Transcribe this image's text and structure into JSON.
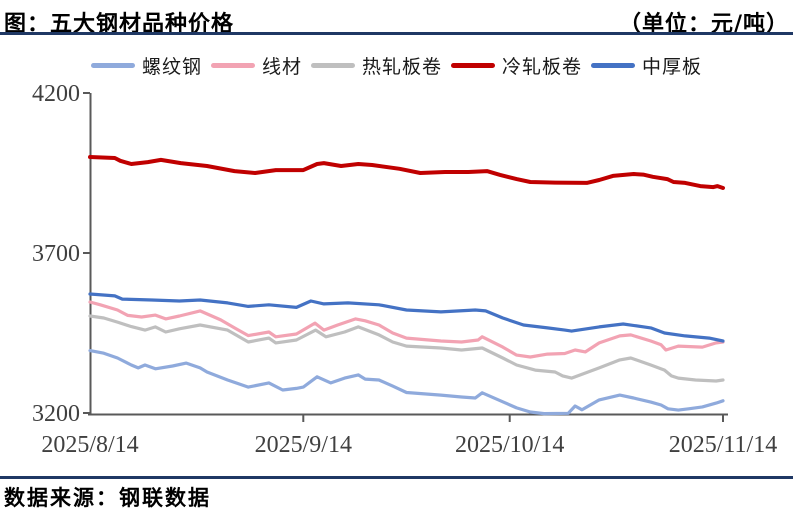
{
  "header": {
    "title": "图：五大钢材品种价格",
    "unit": "（单位：元/吨）"
  },
  "footer": {
    "source": "数据来源：钢联数据"
  },
  "colors": {
    "rule": "#1f3864",
    "axis": "#595959",
    "tick_text": "#404040",
    "series_rebar": "#8faadc",
    "series_wire_rod": "#f2a3b3",
    "series_hot_rolled": "#bfbfbf",
    "series_cold_rolled": "#c00000",
    "series_medium_plate": "#4472c4"
  },
  "chart_data": {
    "type": "line",
    "title": "五大钢材品种价格",
    "unit": "元/吨",
    "grid": false,
    "legend_position": "top",
    "y_axis": {
      "min": 3200,
      "max": 4200,
      "tick_labels": [
        "4200",
        "3700",
        "3200"
      ],
      "tick_values": [
        4200,
        3700,
        3200
      ]
    },
    "x_axis": {
      "total_days": 92,
      "tick_labels": [
        "2025/8/14",
        "2025/9/14",
        "2025/10/14",
        "2025/11/14"
      ],
      "tick_days": [
        0,
        31,
        61,
        92
      ]
    },
    "series": [
      {
        "name": "螺纹钢",
        "color": "#8faadc",
        "thick": false,
        "points": [
          [
            0,
            3395
          ],
          [
            2,
            3387
          ],
          [
            4,
            3372
          ],
          [
            6,
            3350
          ],
          [
            7,
            3341
          ],
          [
            8,
            3350
          ],
          [
            9.5,
            3338
          ],
          [
            12,
            3347
          ],
          [
            14,
            3356
          ],
          [
            16,
            3341
          ],
          [
            17,
            3328
          ],
          [
            20,
            3303
          ],
          [
            23,
            3281
          ],
          [
            26,
            3294
          ],
          [
            28,
            3272
          ],
          [
            30,
            3277
          ],
          [
            31,
            3281
          ],
          [
            33,
            3313
          ],
          [
            35,
            3294
          ],
          [
            37,
            3309
          ],
          [
            39,
            3319
          ],
          [
            40,
            3306
          ],
          [
            42,
            3303
          ],
          [
            44,
            3284
          ],
          [
            46,
            3264
          ],
          [
            51,
            3256
          ],
          [
            54,
            3250
          ],
          [
            56,
            3247
          ],
          [
            57,
            3263
          ],
          [
            60,
            3235
          ],
          [
            62,
            3216
          ],
          [
            64,
            3203
          ],
          [
            66,
            3198
          ],
          [
            69.5,
            3199
          ],
          [
            70.5,
            3222
          ],
          [
            71.5,
            3210
          ],
          [
            74,
            3241
          ],
          [
            77,
            3256
          ],
          [
            79,
            3247
          ],
          [
            81.5,
            3234
          ],
          [
            83,
            3225
          ],
          [
            84,
            3213
          ],
          [
            85.5,
            3209
          ],
          [
            87,
            3213
          ],
          [
            89,
            3219
          ],
          [
            91,
            3231
          ],
          [
            92,
            3238
          ]
        ]
      },
      {
        "name": "线材",
        "color": "#f2a3b3",
        "thick": false,
        "points": [
          [
            0,
            3547
          ],
          [
            1.5,
            3538
          ],
          [
            4,
            3522
          ],
          [
            5.5,
            3505
          ],
          [
            7.5,
            3500
          ],
          [
            9.5,
            3506
          ],
          [
            11,
            3494
          ],
          [
            13,
            3503
          ],
          [
            16,
            3519
          ],
          [
            19,
            3491
          ],
          [
            21,
            3466
          ],
          [
            23,
            3442
          ],
          [
            26,
            3453
          ],
          [
            27,
            3438
          ],
          [
            30,
            3447
          ],
          [
            32.7,
            3481
          ],
          [
            34,
            3459
          ],
          [
            36,
            3475
          ],
          [
            38.6,
            3494
          ],
          [
            40,
            3488
          ],
          [
            42,
            3475
          ],
          [
            44,
            3450
          ],
          [
            46,
            3434
          ],
          [
            51,
            3425
          ],
          [
            54,
            3422
          ],
          [
            56.4,
            3428
          ],
          [
            57,
            3438
          ],
          [
            60,
            3406
          ],
          [
            62,
            3381
          ],
          [
            64,
            3375
          ],
          [
            66.5,
            3384
          ],
          [
            69,
            3386
          ],
          [
            70.5,
            3397
          ],
          [
            72,
            3391
          ],
          [
            74,
            3419
          ],
          [
            77,
            3441
          ],
          [
            78.6,
            3444
          ],
          [
            81.5,
            3425
          ],
          [
            83,
            3413
          ],
          [
            83.7,
            3397
          ],
          [
            85.5,
            3409
          ],
          [
            89,
            3406
          ],
          [
            91,
            3419
          ],
          [
            92,
            3422
          ]
        ]
      },
      {
        "name": "热轧板卷",
        "color": "#bfbfbf",
        "thick": false,
        "points": [
          [
            0,
            3503
          ],
          [
            2,
            3497
          ],
          [
            4,
            3484
          ],
          [
            6,
            3470
          ],
          [
            8,
            3459
          ],
          [
            9.5,
            3469
          ],
          [
            11,
            3453
          ],
          [
            13,
            3463
          ],
          [
            16,
            3475
          ],
          [
            20,
            3459
          ],
          [
            23,
            3422
          ],
          [
            26,
            3434
          ],
          [
            27,
            3419
          ],
          [
            30,
            3428
          ],
          [
            32.8,
            3459
          ],
          [
            34.3,
            3438
          ],
          [
            37,
            3453
          ],
          [
            39,
            3469
          ],
          [
            42,
            3444
          ],
          [
            44,
            3422
          ],
          [
            46,
            3409
          ],
          [
            51,
            3403
          ],
          [
            54,
            3397
          ],
          [
            57,
            3403
          ],
          [
            60,
            3372
          ],
          [
            62,
            3350
          ],
          [
            64.7,
            3334
          ],
          [
            67.6,
            3328
          ],
          [
            68.7,
            3316
          ],
          [
            70,
            3309
          ],
          [
            74,
            3341
          ],
          [
            77,
            3366
          ],
          [
            78.6,
            3372
          ],
          [
            81.5,
            3350
          ],
          [
            83.5,
            3334
          ],
          [
            84.5,
            3316
          ],
          [
            85.5,
            3309
          ],
          [
            88,
            3303
          ],
          [
            91,
            3300
          ],
          [
            92,
            3303
          ]
        ]
      },
      {
        "name": "冷轧板卷",
        "color": "#c00000",
        "thick": true,
        "points": [
          [
            0,
            4000
          ],
          [
            3.6,
            3997
          ],
          [
            4.4,
            3988
          ],
          [
            6,
            3978
          ],
          [
            8.4,
            3984
          ],
          [
            10.3,
            3991
          ],
          [
            13.2,
            3981
          ],
          [
            17,
            3972
          ],
          [
            21,
            3956
          ],
          [
            24,
            3950
          ],
          [
            27,
            3959
          ],
          [
            31,
            3959
          ],
          [
            33,
            3978
          ],
          [
            34,
            3981
          ],
          [
            36.5,
            3972
          ],
          [
            39,
            3978
          ],
          [
            41,
            3975
          ],
          [
            45,
            3963
          ],
          [
            48,
            3950
          ],
          [
            51.6,
            3953
          ],
          [
            55,
            3953
          ],
          [
            57.7,
            3956
          ],
          [
            59.6,
            3944
          ],
          [
            62,
            3931
          ],
          [
            64,
            3922
          ],
          [
            67.6,
            3920
          ],
          [
            72.2,
            3919
          ],
          [
            74,
            3928
          ],
          [
            76,
            3941
          ],
          [
            79,
            3947
          ],
          [
            80.4,
            3945
          ],
          [
            81.8,
            3938
          ],
          [
            83.9,
            3931
          ],
          [
            84.8,
            3922
          ],
          [
            86.5,
            3919
          ],
          [
            88.7,
            3909
          ],
          [
            90.6,
            3906
          ],
          [
            91.2,
            3909
          ],
          [
            92,
            3903
          ]
        ]
      },
      {
        "name": "中厚板",
        "color": "#4472c4",
        "thick": false,
        "points": [
          [
            0,
            3572
          ],
          [
            3.6,
            3566
          ],
          [
            4.7,
            3556
          ],
          [
            9,
            3553
          ],
          [
            13,
            3550
          ],
          [
            16,
            3553
          ],
          [
            20,
            3544
          ],
          [
            23,
            3533
          ],
          [
            26,
            3538
          ],
          [
            30,
            3530
          ],
          [
            32.1,
            3550
          ],
          [
            34,
            3541
          ],
          [
            37.5,
            3544
          ],
          [
            42,
            3538
          ],
          [
            46,
            3522
          ],
          [
            51,
            3516
          ],
          [
            56,
            3522
          ],
          [
            57.5,
            3519
          ],
          [
            60,
            3497
          ],
          [
            63,
            3475
          ],
          [
            66.5,
            3466
          ],
          [
            69,
            3459
          ],
          [
            70,
            3456
          ],
          [
            74,
            3469
          ],
          [
            77.5,
            3478
          ],
          [
            81.5,
            3466
          ],
          [
            83.5,
            3450
          ],
          [
            86.5,
            3441
          ],
          [
            90,
            3434
          ],
          [
            92,
            3425
          ]
        ]
      }
    ]
  }
}
